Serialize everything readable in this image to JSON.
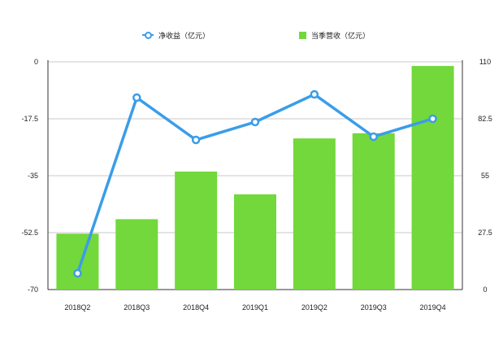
{
  "chart_data": {
    "type": "bar",
    "categories": [
      "2018Q2",
      "2018Q3",
      "2018Q4",
      "2019Q1",
      "2019Q2",
      "2019Q3",
      "2019Q4"
    ],
    "series": [
      {
        "name": "当季营收（亿元）",
        "type": "bar",
        "axis": "right",
        "color": "#72d83b",
        "values": [
          27,
          34,
          57,
          46,
          73,
          75.5,
          108
        ]
      },
      {
        "name": "净收益（亿元）",
        "type": "line",
        "axis": "left",
        "color": "#3a9de8",
        "values": [
          -65,
          -11,
          -24,
          -18.5,
          -10,
          -23,
          -17.5
        ]
      }
    ],
    "left_axis": {
      "ylim": [
        -70,
        0
      ],
      "ticks": [
        "0",
        "-17.5",
        "-35",
        "-52.5",
        "-70"
      ]
    },
    "right_axis": {
      "ylim": [
        0,
        110
      ],
      "ticks": [
        "110",
        "82.5",
        "55",
        "27.5",
        "0"
      ]
    },
    "grid": true,
    "legend_position": "top"
  }
}
